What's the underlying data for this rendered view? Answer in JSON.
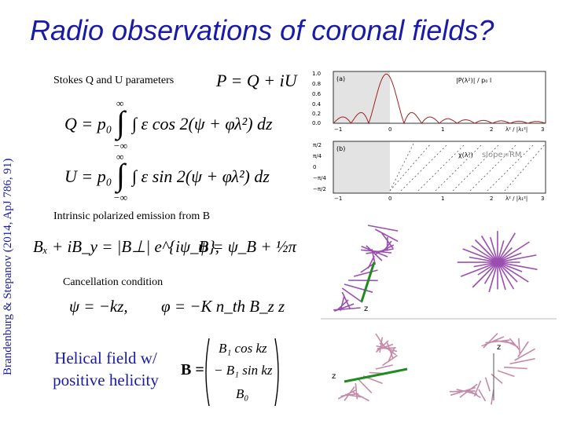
{
  "title": "Radio observations of coronal fields?",
  "side_citation": "Brandenburg & Stepanov (2014, ApJ 786, 91)",
  "labels": {
    "stokes": "Stokes Q and U parameters",
    "intrinsic": "Intrinsic polarized emission from B",
    "cancellation": "Cancellation condition",
    "helical_line1": "Helical field w/",
    "helical_line2": "positive helicity",
    "slope": "slope=RM"
  },
  "equations": {
    "P": "P = Q + iU",
    "Q_lhs": "Q = p₀",
    "Q_int": "∫ ε cos 2(ψ + φλ²) dz",
    "U_lhs": "U = p₀",
    "U_int": "∫ ε sin 2(ψ + φλ²) dz",
    "Bx": "Bₓ + iB_y = |B⊥| e^{iψ_B},",
    "psi": "ψ = ψ_B + ½π",
    "cancel1": "ψ = −kz,",
    "cancel2": "φ = −K n_th B_z z",
    "bvec": "B =",
    "b1": "B₁ cos kz",
    "b2": "− B₁ sin kz",
    "b3": "B₀",
    "inf": "∞",
    "minf": "−∞"
  },
  "plot_a": {
    "panel": "(a)",
    "legend": "|P(λ²)| / p₀ l",
    "xlabel": "λ² / |λ₁²|",
    "yticks": [
      "1.0",
      "0.8",
      "0.6",
      "0.4",
      "0.2",
      "0.0"
    ],
    "xticks": [
      "−1",
      "0",
      "1",
      "2",
      "3"
    ]
  },
  "plot_b": {
    "panel": "(b)",
    "legend": "χ(λ²)",
    "xlabel": "λ² / |λ₁²|",
    "yticks": [
      "π/2",
      "π/4",
      "0",
      "−π/4",
      "−π/2"
    ],
    "xticks": [
      "−1",
      "0",
      "1",
      "2",
      "3"
    ]
  },
  "axis_labels": {
    "z1": "z",
    "z2": "z",
    "z3": "z"
  },
  "colors": {
    "title": "#1a1aa8",
    "curve": "#a02020",
    "shade": "#e3e3e3",
    "arrow": "#9a4fb0",
    "axis_green": "#1e8c1e"
  }
}
